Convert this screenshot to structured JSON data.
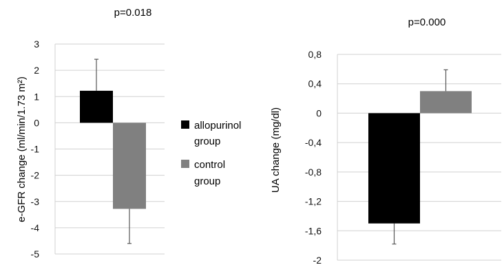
{
  "chart_data": [
    {
      "type": "bar",
      "title": "p=0.018",
      "ylabel": "e-GFR change (ml/min/1.73 m²)",
      "ylim": [
        -5,
        3
      ],
      "yticks": [
        3,
        2,
        1,
        0,
        -1,
        -2,
        -3,
        -4,
        -5
      ],
      "ytick_labels": [
        "3",
        "2",
        "1",
        "0",
        "-1",
        "-2",
        "-3",
        "-4",
        "-5"
      ],
      "grid": true,
      "series": [
        {
          "name": "allopurinol group",
          "value": 1.22,
          "error": 1.2,
          "color": "#000000"
        },
        {
          "name": "control group",
          "value": -3.28,
          "error": 1.32,
          "color": "#808080"
        }
      ]
    },
    {
      "type": "bar",
      "title": "p=0.000",
      "ylabel": "UA change (mg/dl)",
      "ylim": [
        -2,
        0.8
      ],
      "yticks": [
        0.8,
        0.4,
        0,
        -0.4,
        -0.8,
        -1.2,
        -1.6,
        -2
      ],
      "ytick_labels": [
        "0,8",
        "0,4",
        "0",
        "-0,4",
        "-0,8",
        "-1,2",
        "-1,6",
        "-2"
      ],
      "grid": true,
      "series": [
        {
          "name": "allopurinol group",
          "value": -1.5,
          "error": 0.28,
          "color": "#000000"
        },
        {
          "name": "control group",
          "value": 0.3,
          "error": 0.29,
          "color": "#808080"
        }
      ]
    }
  ],
  "legend": {
    "placement": "center",
    "items": [
      {
        "line1": "allopurinol",
        "line2": "group",
        "color": "#000000"
      },
      {
        "line1": "control",
        "line2": "group",
        "color": "#808080"
      }
    ]
  }
}
